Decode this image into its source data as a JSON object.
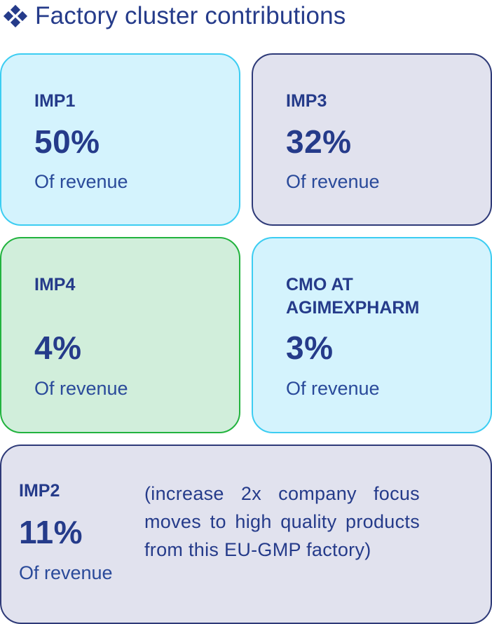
{
  "header": {
    "title": "Factory cluster contributions",
    "icon": "diamond-cluster-icon"
  },
  "colors": {
    "text": "#253b8a",
    "cyan_fill": "#d4f3fd",
    "cyan_border": "#3ccdf2",
    "grey_fill": "#e1e2ee",
    "grey_border": "#2e3a78",
    "green_fill": "#d1eedb",
    "green_border": "#22b33e"
  },
  "cards": {
    "imp1": {
      "label": "IMP1",
      "value": "50%",
      "unit": "Of revenue"
    },
    "imp3": {
      "label": "IMP3",
      "value": "32%",
      "unit": "Of revenue"
    },
    "imp4": {
      "label": "IMP4",
      "value": "4%",
      "unit": "Of revenue"
    },
    "cmo": {
      "label": "CMO AT AGIMEXPHARM",
      "value": "3%",
      "unit": "Of revenue"
    },
    "imp2": {
      "label": "IMP2",
      "value": "11%",
      "unit": "Of revenue",
      "note": "(increase 2x company focus moves to high quality products from this EU-GMP factory)"
    }
  }
}
